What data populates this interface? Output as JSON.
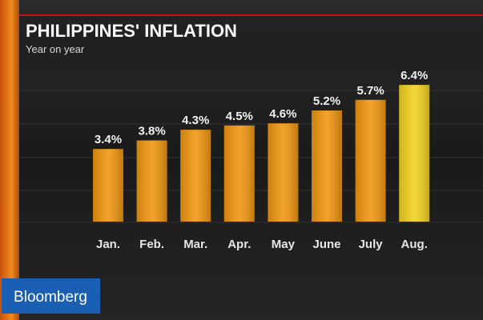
{
  "chart_data": {
    "type": "bar",
    "title": "PHILIPPINES' INFLATION",
    "subtitle": "Year on year",
    "categories": [
      "Jan.",
      "Feb.",
      "Mar.",
      "Apr.",
      "May",
      "June",
      "July",
      "Aug."
    ],
    "values": [
      3.4,
      3.8,
      4.3,
      4.5,
      4.6,
      5.2,
      5.7,
      6.4
    ],
    "value_labels": [
      "3.4%",
      "3.8%",
      "4.3%",
      "4.5%",
      "4.6%",
      "5.2%",
      "5.7%",
      "6.4%"
    ],
    "colors": [
      "#f0960f",
      "#f0960f",
      "#f0960f",
      "#f0960f",
      "#f0960f",
      "#f0960f",
      "#f0960f",
      "#f2d21e"
    ]
  },
  "brand": "Bloomberg"
}
